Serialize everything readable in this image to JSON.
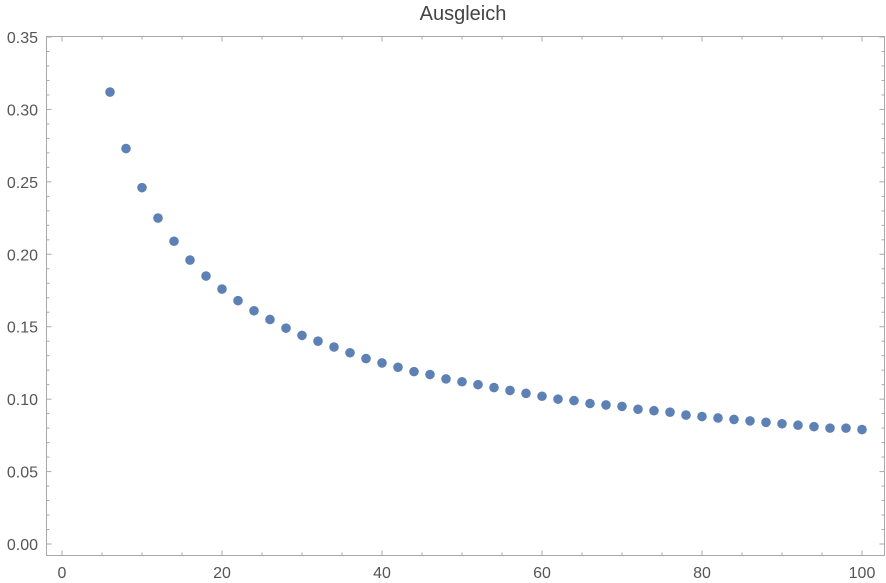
{
  "chart_data": {
    "type": "scatter",
    "title": "Ausgleich",
    "xlabel": "",
    "ylabel": "",
    "xlim": [
      -2,
      101
    ],
    "ylim": [
      -0.005,
      0.35
    ],
    "grid": false,
    "legend": "none",
    "color": "#5e81b5",
    "x_ticks": [
      {
        "value": 0,
        "label": "0"
      },
      {
        "value": 20,
        "label": "20"
      },
      {
        "value": 40,
        "label": "40"
      },
      {
        "value": 60,
        "label": "60"
      },
      {
        "value": 80,
        "label": "80"
      },
      {
        "value": 100,
        "label": "100"
      }
    ],
    "y_ticks": [
      {
        "value": 0.0,
        "label": "0.00"
      },
      {
        "value": 0.05,
        "label": "0.05"
      },
      {
        "value": 0.1,
        "label": "0.10"
      },
      {
        "value": 0.15,
        "label": "0.15"
      },
      {
        "value": 0.2,
        "label": "0.20"
      },
      {
        "value": 0.25,
        "label": "0.25"
      },
      {
        "value": 0.3,
        "label": "0.30"
      },
      {
        "value": 0.35,
        "label": "0.35"
      }
    ],
    "series": [
      {
        "x": [
          6,
          8,
          10,
          12,
          14,
          16,
          18,
          20,
          22,
          24,
          26,
          28,
          30,
          32,
          34,
          36,
          38,
          40,
          42,
          44,
          46,
          48,
          50,
          52,
          54,
          56,
          58,
          60,
          62,
          64,
          66,
          68,
          70,
          72,
          74,
          76,
          78,
          80,
          82,
          84,
          86,
          88,
          90,
          92,
          94,
          96,
          98,
          100
        ],
        "y": [
          0.312,
          0.273,
          0.246,
          0.225,
          0.209,
          0.196,
          0.185,
          0.176,
          0.168,
          0.161,
          0.155,
          0.149,
          0.144,
          0.14,
          0.136,
          0.132,
          0.128,
          0.125,
          0.122,
          0.119,
          0.117,
          0.114,
          0.112,
          0.11,
          0.108,
          0.106,
          0.104,
          0.102,
          0.1,
          0.099,
          0.097,
          0.096,
          0.095,
          0.093,
          0.092,
          0.091,
          0.089,
          0.088,
          0.087,
          0.086,
          0.085,
          0.084,
          0.083,
          0.082,
          0.081,
          0.08,
          0.08,
          0.079
        ]
      }
    ]
  }
}
